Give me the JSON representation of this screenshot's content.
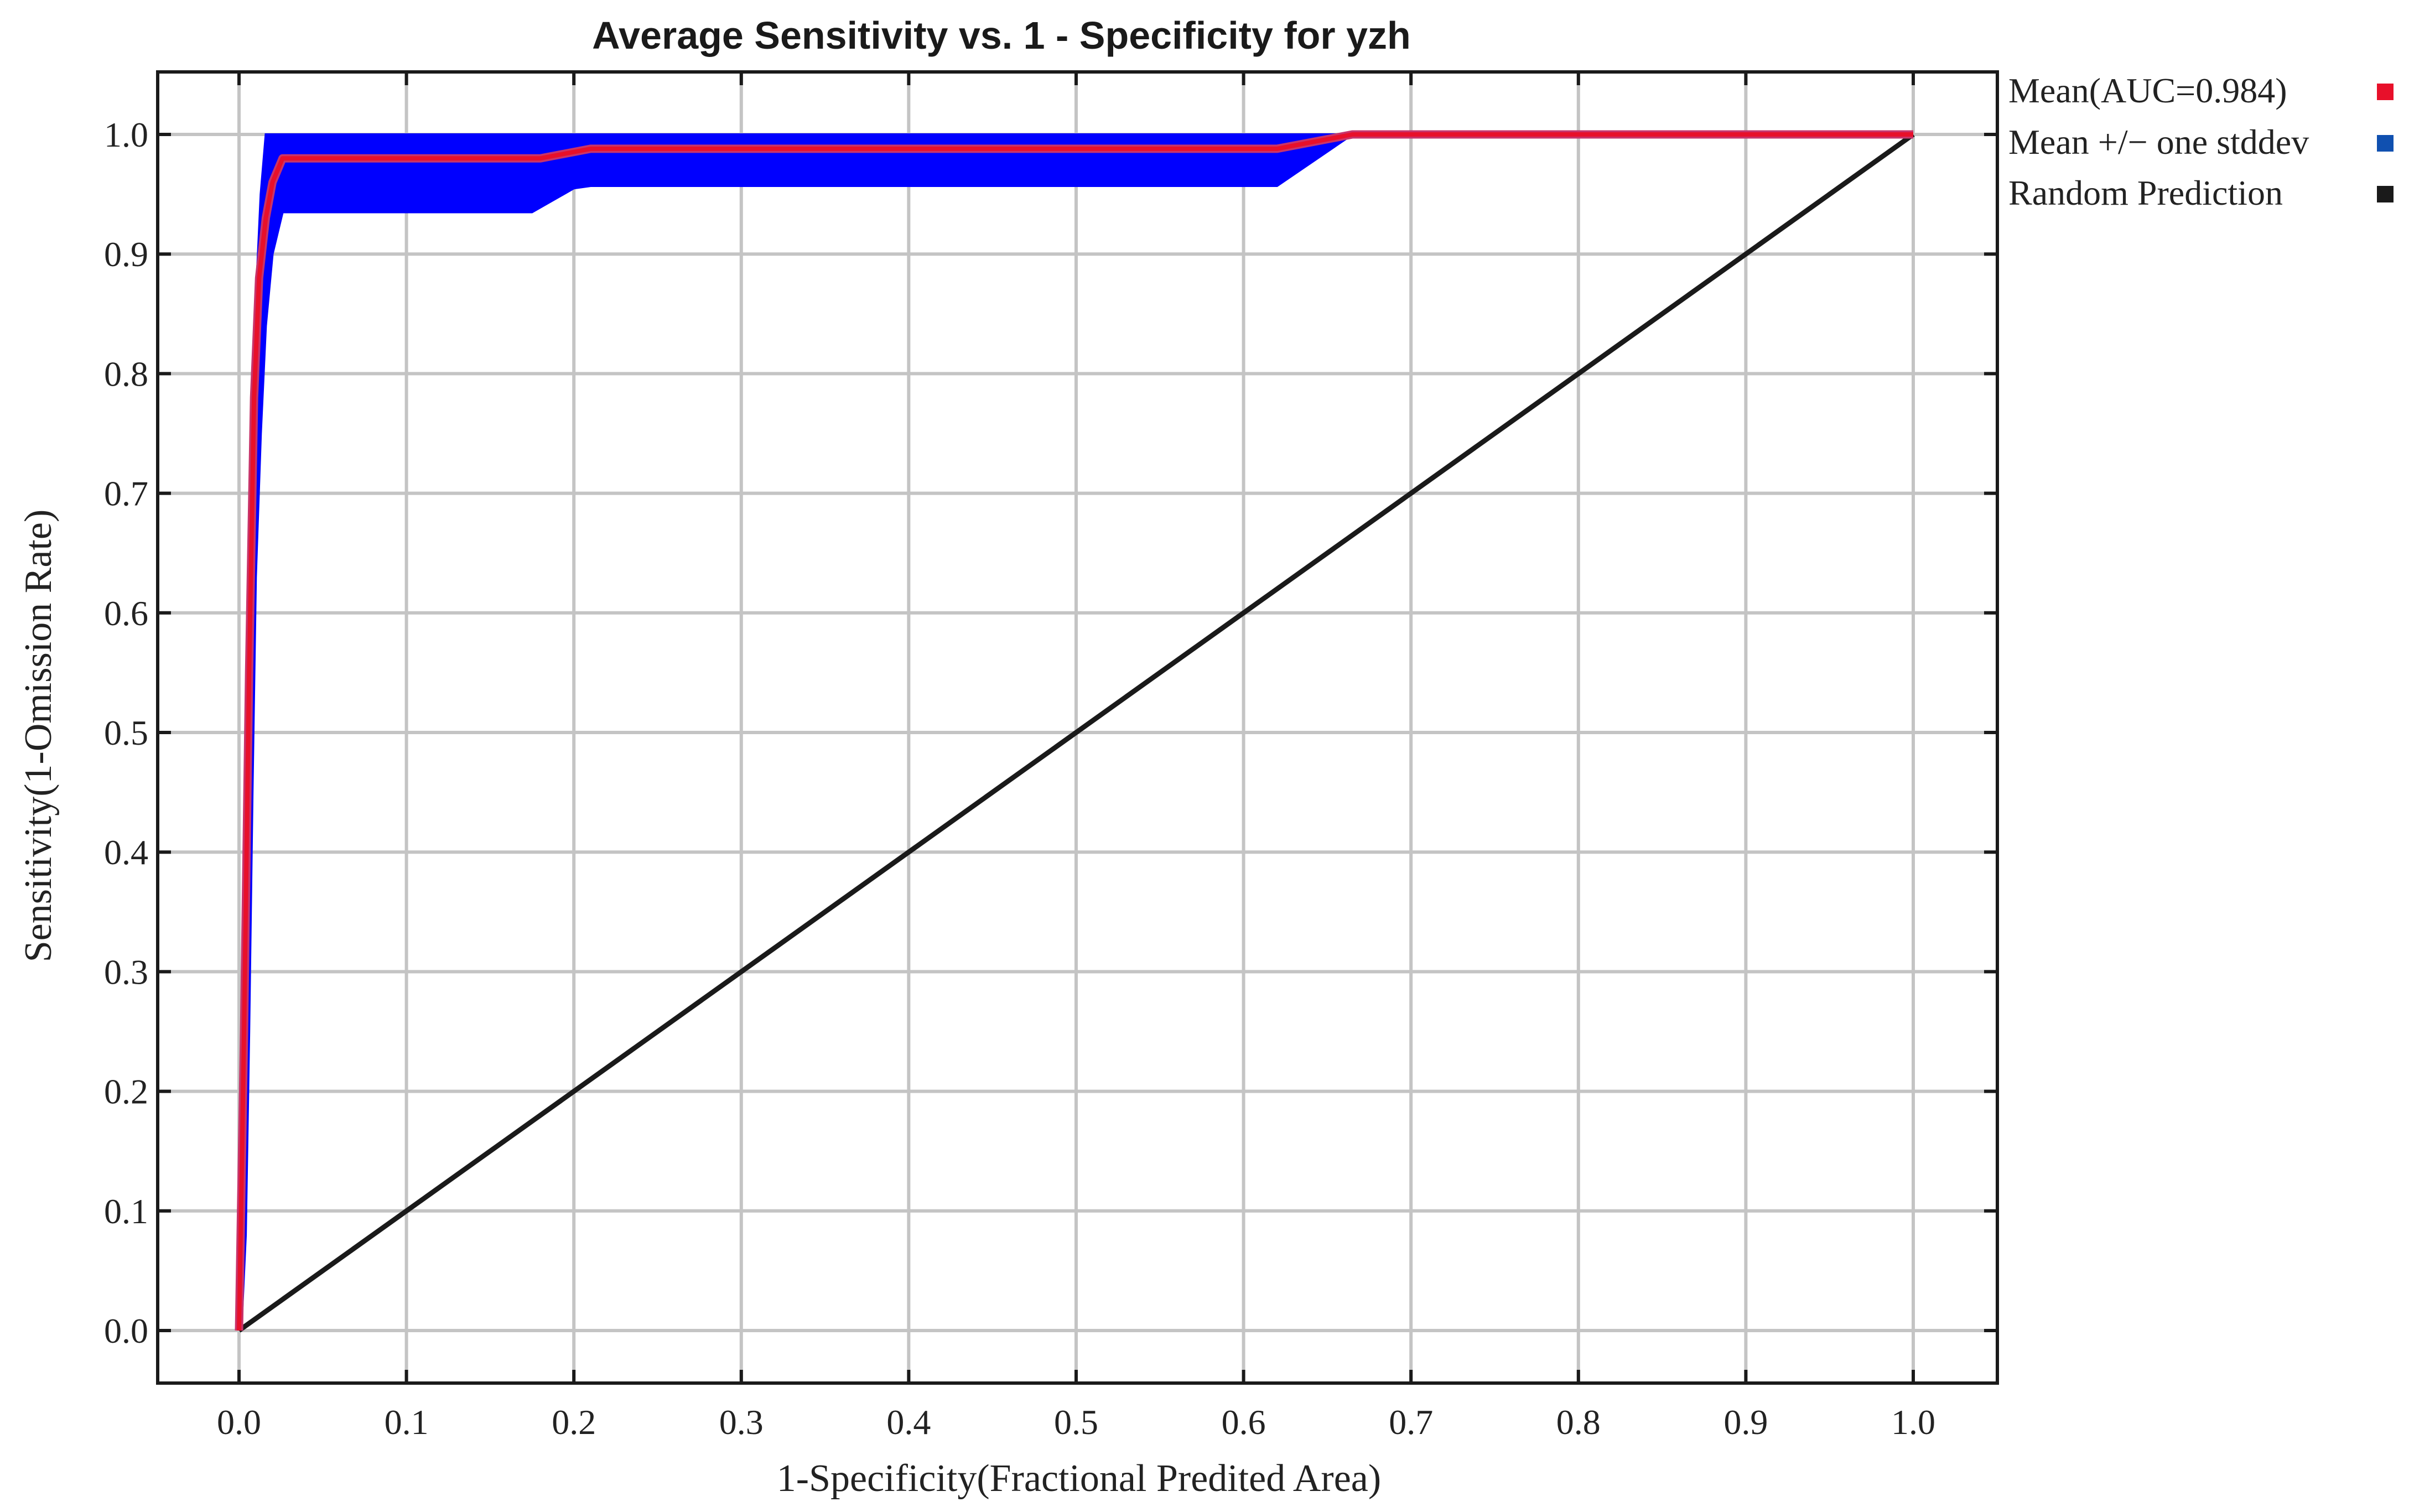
{
  "chart_data": {
    "type": "line",
    "title": "Average Sensitivity vs. 1 - Specificity for yzh",
    "xlabel": "1-Specificity(Fractional Predited Area)",
    "ylabel": "Sensitivity(1-Omission Rate)",
    "xlim": [
      0,
      1
    ],
    "ylim": [
      0,
      1
    ],
    "xticks": [
      "0.0",
      "0.1",
      "0.2",
      "0.3",
      "0.4",
      "0.5",
      "0.6",
      "0.7",
      "0.8",
      "0.9",
      "1.0"
    ],
    "yticks": [
      "0.0",
      "0.1",
      "0.2",
      "0.3",
      "0.4",
      "0.5",
      "0.6",
      "0.7",
      "0.8",
      "0.9",
      "1.0"
    ],
    "grid": true,
    "legend_position": "outside-top-right",
    "series": [
      {
        "name": "Mean(AUC=0.984)",
        "color": "#e8102a",
        "x": [
          0.0,
          0.003,
          0.006,
          0.009,
          0.012,
          0.016,
          0.02,
          0.026,
          0.1,
          0.18,
          0.21,
          0.4,
          0.62,
          0.665,
          1.0
        ],
        "y": [
          0.0,
          0.25,
          0.55,
          0.78,
          0.88,
          0.93,
          0.96,
          0.98,
          0.98,
          0.98,
          0.988,
          0.988,
          0.988,
          1.0,
          1.0
        ]
      },
      {
        "name": "Mean +/− one stddev",
        "color": "#0000ff",
        "x": [
          0.0,
          0.002,
          0.004,
          0.006,
          0.008,
          0.01,
          0.013,
          0.016,
          0.02,
          0.026,
          0.1,
          0.175,
          0.2,
          0.21,
          0.4,
          0.62,
          0.665,
          1.0
        ],
        "upper": [
          0.0,
          0.22,
          0.45,
          0.66,
          0.79,
          0.86,
          0.95,
          1.0,
          1.0,
          1.0,
          1.0,
          1.0,
          1.0,
          1.0,
          1.0,
          1.0,
          1.0,
          1.0
        ],
        "lower": [
          0.0,
          0.02,
          0.08,
          0.25,
          0.45,
          0.63,
          0.75,
          0.84,
          0.9,
          0.935,
          0.935,
          0.935,
          0.955,
          0.957,
          0.957,
          0.957,
          1.0,
          1.0
        ]
      },
      {
        "name": "Random Prediction",
        "color": "#1a1a1a",
        "x": [
          0.0,
          1.0
        ],
        "y": [
          0.0,
          1.0
        ]
      }
    ]
  }
}
